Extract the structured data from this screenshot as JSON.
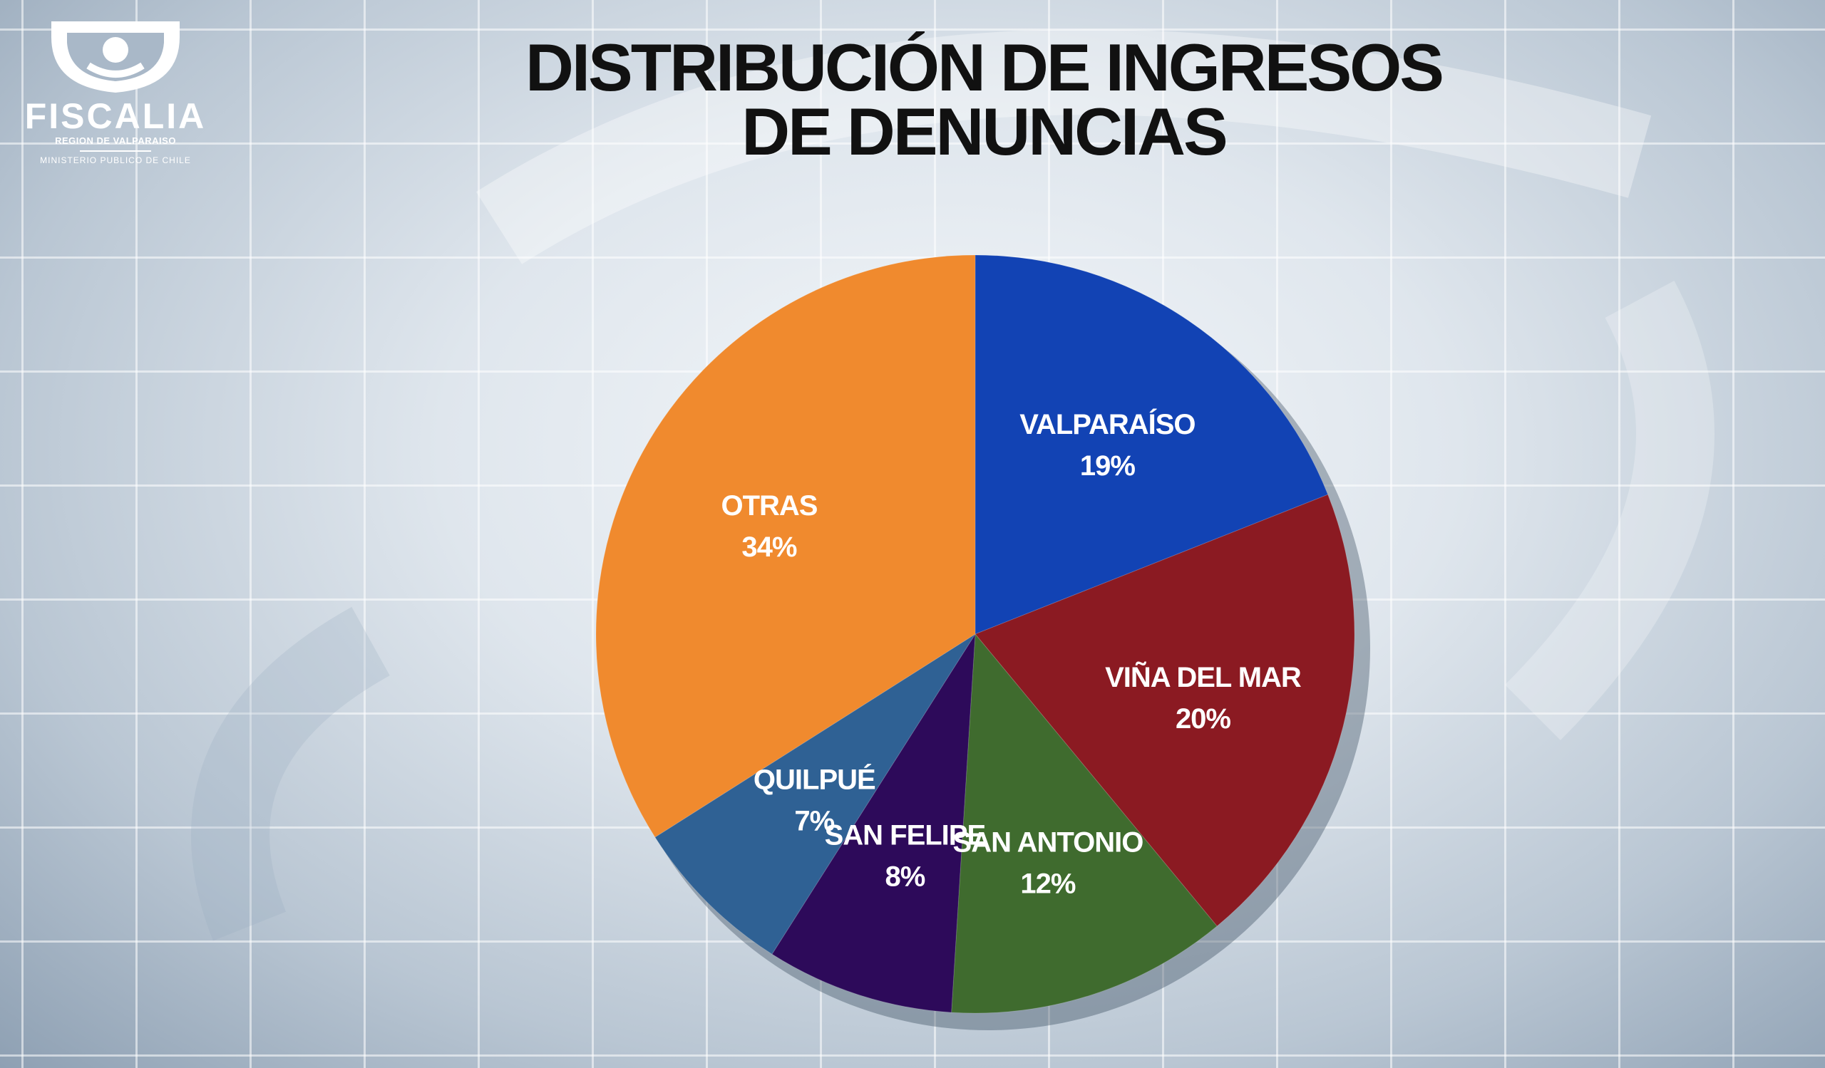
{
  "title": {
    "line1": "DISTRIBUCIÓN DE INGRESOS",
    "line2": "DE DENUNCIAS"
  },
  "logo": {
    "name": "FISCALIA",
    "region": "REGION DE VALPARAISO",
    "ministry": "MINISTERIO PUBLICO DE CHILE",
    "icon": "fiscalia-scales-icon"
  },
  "chart_data": {
    "type": "pie",
    "slices": [
      {
        "label": "VALPARAÍSO",
        "value": 19,
        "display": "19%",
        "color": "#1243b4",
        "label_color": "#ffffff"
      },
      {
        "label": "VIÑA DEL MAR",
        "value": 20,
        "display": "20%",
        "color": "#8b1a22",
        "label_color": "#ffffff"
      },
      {
        "label": "SAN ANTONIO",
        "value": 12,
        "display": "12%",
        "color": "#3f6b2e",
        "label_color": "#ffffff"
      },
      {
        "label": "SAN FELIPE",
        "value": 8,
        "display": "8%",
        "color": "#2d0a5a",
        "label_color": "#ffffff"
      },
      {
        "label": "QUILPUÉ",
        "value": 7,
        "display": "7%",
        "color": "#2f6194",
        "label_color": "#ffffff"
      },
      {
        "label": "OTRAS",
        "value": 34,
        "display": "34%",
        "color": "#f08a2e",
        "label_color": "#ffffff"
      }
    ],
    "start": "top",
    "direction": "clockwise",
    "legend": "none",
    "labels": "inside"
  }
}
